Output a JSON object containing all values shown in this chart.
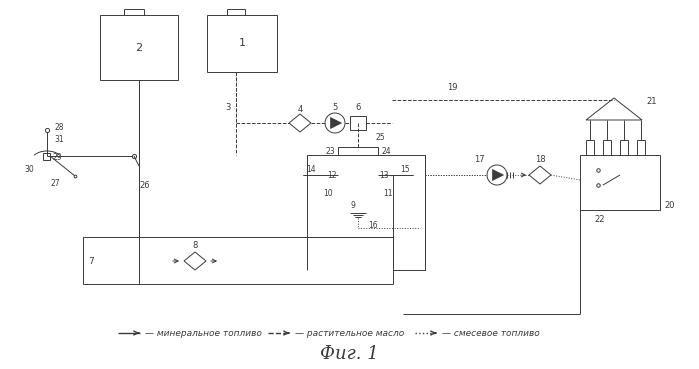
{
  "title": "Фиг. 1",
  "legend_solid": "— минеральное топливо",
  "legend_dash": "— растительное масло",
  "legend_dot": "— смесевое топливо",
  "bg_color": "#ffffff",
  "line_color": "#3a3a3a",
  "fig_width": 6.99,
  "fig_height": 3.69,
  "dpi": 100
}
